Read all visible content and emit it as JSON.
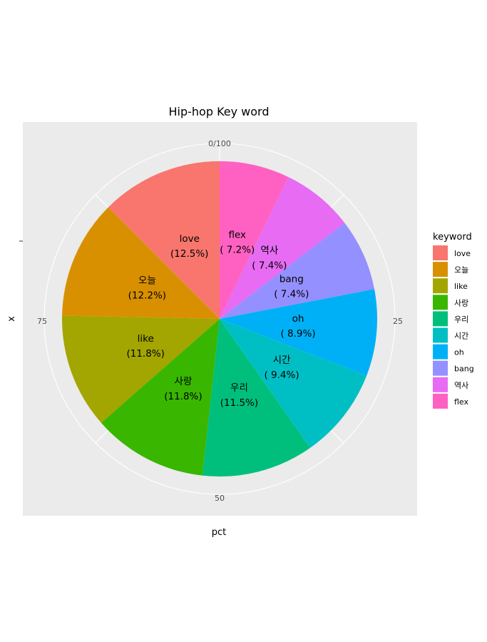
{
  "chart_data": {
    "type": "pie",
    "title": "Hip-hop Key word",
    "xlabel": "pct",
    "ylabel": "x",
    "theta_ticks": [
      "0/100",
      "25",
      "50",
      "75"
    ],
    "legend_title": "keyword",
    "legend_position": "right",
    "grid": true,
    "slices": [
      {
        "label": "flex",
        "pct": 7.2,
        "pct_label": "( 7.2%)",
        "color": "#FF61C3"
      },
      {
        "label": "역사",
        "pct": 7.4,
        "pct_label": "( 7.4%)",
        "color": "#E76BF3"
      },
      {
        "label": "bang",
        "pct": 7.4,
        "pct_label": "( 7.4%)",
        "color": "#9590FF"
      },
      {
        "label": "oh",
        "pct": 8.9,
        "pct_label": "( 8.9%)",
        "color": "#00B0F6"
      },
      {
        "label": "시간",
        "pct": 9.4,
        "pct_label": "( 9.4%)",
        "color": "#00BFC4"
      },
      {
        "label": "우리",
        "pct": 11.5,
        "pct_label": "(11.5%)",
        "color": "#00BF7D"
      },
      {
        "label": "사랑",
        "pct": 11.8,
        "pct_label": "(11.8%)",
        "color": "#39B600"
      },
      {
        "label": "like",
        "pct": 11.8,
        "pct_label": "(11.8%)",
        "color": "#A3A500"
      },
      {
        "label": "오늘",
        "pct": 12.2,
        "pct_label": "(12.2%)",
        "color": "#D89000"
      },
      {
        "label": "love",
        "pct": 12.5,
        "pct_label": "(12.5%)",
        "color": "#F8766D"
      }
    ],
    "legend_order": [
      "love",
      "오늘",
      "like",
      "사랑",
      "우리",
      "시간",
      "oh",
      "bang",
      "역사",
      "flex"
    ]
  }
}
